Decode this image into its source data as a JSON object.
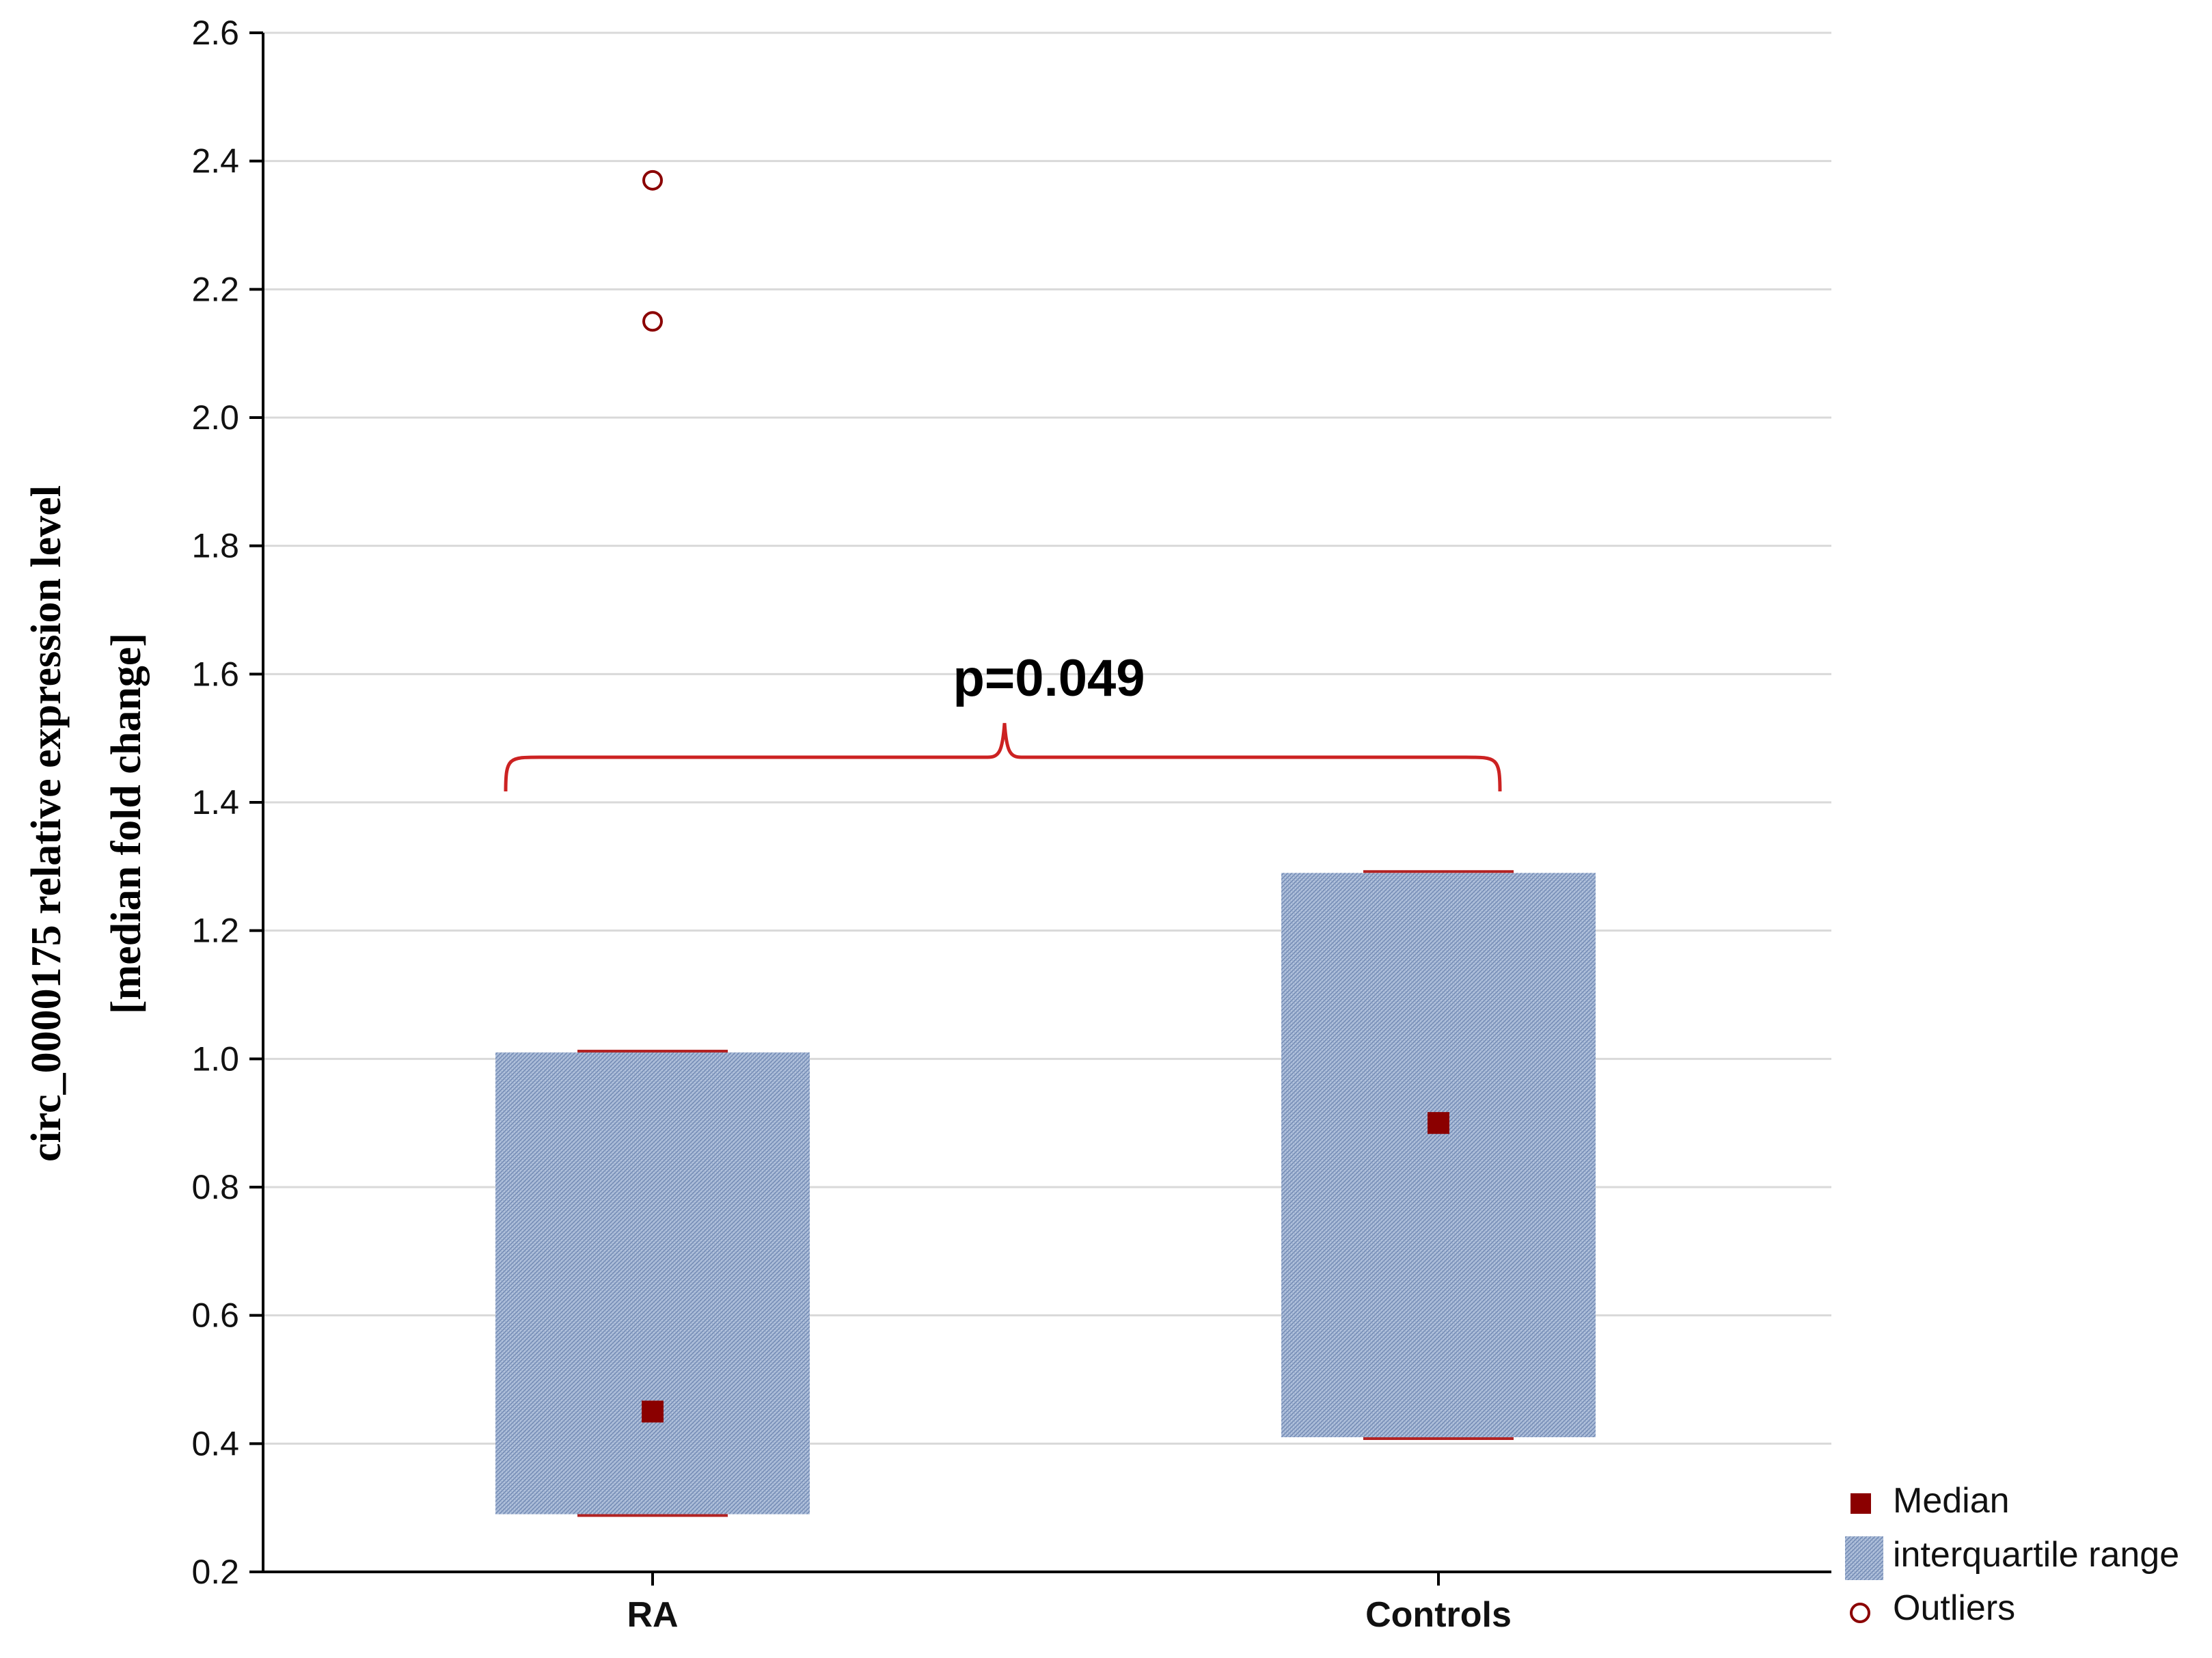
{
  "chart_data": {
    "type": "box",
    "ylabel_line1": "circ_0000175  relative expression level",
    "ylabel_line2": "[median fold change]",
    "ylim": [
      0.2,
      2.6
    ],
    "yticks": [
      "0.2",
      "0.4",
      "0.6",
      "0.8",
      "1.0",
      "1.2",
      "1.4",
      "1.6",
      "1.8",
      "2.0",
      "2.2",
      "2.4",
      "2.6"
    ],
    "grid": true,
    "categories": [
      "RA",
      "Controls"
    ],
    "groups": [
      {
        "category": "RA",
        "median": 0.45,
        "q1": 0.29,
        "q3": 1.01,
        "outliers": [
          2.15,
          2.37
        ]
      },
      {
        "category": "Controls",
        "median": 0.9,
        "q1": 0.41,
        "q3": 1.29,
        "outliers": []
      }
    ],
    "annotation": "p=0.049",
    "legend": {
      "placement": "bottom-right",
      "items": [
        "Median",
        "interquartile range",
        "Outliers"
      ]
    },
    "colors": {
      "box_fill": "#a7b9d6",
      "box_hatch": "#6f89b5",
      "median": "#8b0000",
      "outlier": "#8b0000",
      "whisker": "#b22222",
      "bracket": "#cc2222",
      "grid": "#d9d9d9"
    }
  }
}
